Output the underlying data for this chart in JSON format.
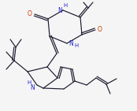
{
  "bg_color": "#f5f5f5",
  "bond_color": "#1a1a2e",
  "atom_colors": {
    "N": "#2222cc",
    "O": "#cc3300",
    "H": "#2222cc",
    "C": "#1a1a2e"
  },
  "figsize": [
    1.74,
    1.41
  ],
  "dpi": 100,
  "lw": 0.85,
  "fontsize": 5.5
}
